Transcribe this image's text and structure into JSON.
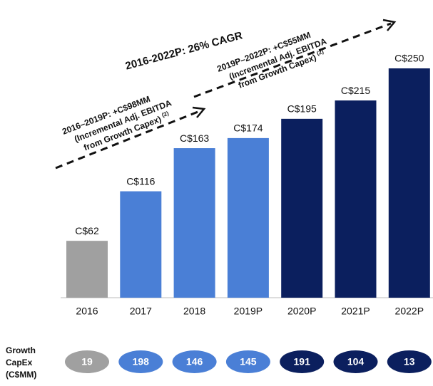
{
  "chart_data": {
    "type": "bar",
    "categories": [
      "2016",
      "2017",
      "2018",
      "2019P",
      "2020P",
      "2021P",
      "2022P"
    ],
    "values": [
      62,
      116,
      163,
      174,
      195,
      215,
      250
    ],
    "value_labels": [
      "C$62",
      "C$116",
      "C$163",
      "C$174",
      "C$195",
      "C$215",
      "C$250"
    ],
    "colors": [
      "#a0a0a0",
      "#4a7fd6",
      "#4a7fd6",
      "#4a7fd6",
      "#0b1f5e",
      "#0b1f5e",
      "#0b1f5e"
    ],
    "annotations": {
      "cagr": "2016-2022P: 26% CAGR",
      "segments": [
        {
          "lines": [
            "2016–2019P: +C$98MM",
            "(Incremental  Adj. EBITDA",
            "from Growth Capex)"
          ],
          "note": "(2)"
        },
        {
          "lines": [
            "2019P–2022P: +C$55MM",
            "(Incremental  Adj. EBITDA",
            "from Growth Capex)"
          ],
          "note": "(2)"
        }
      ]
    },
    "growth_capex": {
      "label_lines": [
        "Growth",
        "CapEx",
        "(C$MM)"
      ],
      "values": [
        19,
        198,
        146,
        145,
        191,
        104,
        13
      ]
    }
  }
}
